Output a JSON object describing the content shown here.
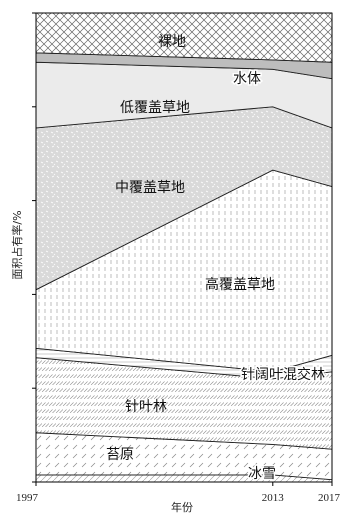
{
  "chart_data": {
    "type": "area",
    "stacked": true,
    "normalized": true,
    "title": "",
    "xlabel": "年份",
    "ylabel": "面积占有率/%",
    "x": [
      1997,
      2013,
      2017
    ],
    "x_tick_labels": [
      "1997",
      "2013",
      "2017"
    ],
    "y_tick_labels_shown": false,
    "ylim": [
      0,
      100
    ],
    "grid": false,
    "legend": "none",
    "series": [
      {
        "name": "冰雪",
        "values": [
          1.5,
          1.5,
          0.5
        ]
      },
      {
        "name": "苔原",
        "values": [
          9.0,
          6.5,
          6.5
        ]
      },
      {
        "name": "针叶林",
        "values": [
          16.0,
          14.0,
          16.5
        ]
      },
      {
        "name": "针阔叶混交林",
        "values": [
          2.0,
          1.5,
          3.5
        ]
      },
      {
        "name": "高覆盖草地",
        "values": [
          12.5,
          43.0,
          36.0
        ]
      },
      {
        "name": "中覆盖草地",
        "values": [
          34.5,
          13.5,
          12.5
        ]
      },
      {
        "name": "低覆盖草地",
        "values": [
          14.0,
          8.0,
          10.5
        ]
      },
      {
        "name": "水体",
        "values": [
          2.0,
          2.0,
          3.5
        ]
      },
      {
        "name": "裸地",
        "values": [
          8.5,
          10.0,
          10.5
        ]
      }
    ]
  }
}
